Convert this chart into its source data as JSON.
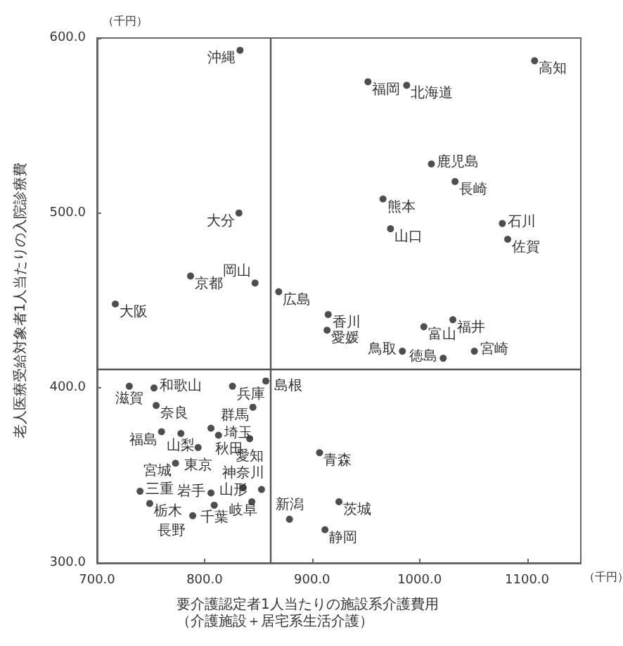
{
  "chart_data": {
    "type": "scatter",
    "xlabel": "要介護認定者1人当たりの施設系介護費用（介護施設＋居宅系生活介護）",
    "ylabel": "老人医療受給対象者1人当たりの入院診療費",
    "x": [
      833,
      952,
      988,
      1107,
      832,
      787,
      847,
      869,
      717,
      915,
      914,
      1011,
      1033,
      966,
      973,
      1077,
      1082,
      1004,
      1031,
      1051,
      984,
      1022,
      730,
      753,
      755,
      826,
      857,
      845,
      806,
      760,
      778,
      794,
      813,
      842,
      773,
      740,
      749,
      836,
      806,
      853,
      809,
      844,
      789,
      879,
      907,
      925,
      912
    ],
    "series": [
      {
        "color": "#222222",
        "values": [
          593,
          575,
          573,
          587,
          500,
          464,
          460,
          455,
          448,
          442,
          433,
          528,
          518,
          508,
          491,
          494,
          485,
          435,
          439,
          421,
          421,
          417,
          401,
          400,
          390,
          401,
          404,
          389,
          377,
          375,
          374,
          366,
          373,
          371,
          357,
          341,
          334,
          343,
          340,
          342,
          333,
          335,
          327,
          325,
          363,
          335,
          319
        ]
      }
    ],
    "marker": "circle",
    "xlim": [
      700,
      1150
    ],
    "xticks": [
      {
        "value": 700,
        "label": "700.0"
      },
      {
        "value": 800,
        "label": "800.0"
      },
      {
        "value": 900,
        "label": "900.0"
      },
      {
        "value": 1000,
        "label": "1000.0"
      },
      {
        "value": 1100,
        "label": "1100.0"
      }
    ],
    "ylim": [
      300,
      600
    ],
    "yticks": [
      {
        "value": 300,
        "label": "300.0"
      },
      {
        "value": 400,
        "label": "400.0"
      },
      {
        "value": 500,
        "label": "500.0"
      },
      {
        "value": 600,
        "label": "600.0"
      }
    ],
    "grid": false,
    "ref_lines": [
      {
        "axis": "x",
        "value": 861,
        "color": "#555555"
      },
      {
        "axis": "y",
        "value": 411,
        "color": "#555555"
      }
    ],
    "annotations": [
      "（千円）",
      "（千円）",
      {
        "text": "沖縄",
        "x": 833,
        "y": 593
      },
      {
        "text": "福岡",
        "x": 952,
        "y": 575
      },
      {
        "text": "北海道",
        "x": 988,
        "y": 573
      },
      {
        "text": "高知",
        "x": 1107,
        "y": 587
      },
      {
        "text": "大分",
        "x": 832,
        "y": 500
      },
      {
        "text": "京都",
        "x": 787,
        "y": 464
      },
      {
        "text": "岡山",
        "x": 847,
        "y": 460
      },
      {
        "text": "広島",
        "x": 869,
        "y": 455
      },
      {
        "text": "大阪",
        "x": 717,
        "y": 448
      },
      {
        "text": "香川",
        "x": 915,
        "y": 442
      },
      {
        "text": "愛媛",
        "x": 914,
        "y": 433
      },
      {
        "text": "鹿児島",
        "x": 1011,
        "y": 528
      },
      {
        "text": "長崎",
        "x": 1033,
        "y": 518
      },
      {
        "text": "熊本",
        "x": 966,
        "y": 508
      },
      {
        "text": "山口",
        "x": 973,
        "y": 491
      },
      {
        "text": "石川",
        "x": 1077,
        "y": 494
      },
      {
        "text": "佐賀",
        "x": 1082,
        "y": 485
      },
      {
        "text": "富山",
        "x": 1004,
        "y": 435
      },
      {
        "text": "福井",
        "x": 1031,
        "y": 439
      },
      {
        "text": "宮崎",
        "x": 1051,
        "y": 421
      },
      {
        "text": "鳥取",
        "x": 984,
        "y": 421
      },
      {
        "text": "徳島",
        "x": 1022,
        "y": 417
      },
      {
        "text": "滋賀",
        "x": 730,
        "y": 401
      },
      {
        "text": "和歌山",
        "x": 753,
        "y": 400
      },
      {
        "text": "奈良",
        "x": 755,
        "y": 390
      },
      {
        "text": "兵庫",
        "x": 826,
        "y": 401
      },
      {
        "text": "島根",
        "x": 857,
        "y": 404
      },
      {
        "text": "群馬",
        "x": 845,
        "y": 389
      },
      {
        "text": "秋田",
        "x": 806,
        "y": 377
      },
      {
        "text": "福島",
        "x": 760,
        "y": 375
      },
      {
        "text": "山梨",
        "x": 778,
        "y": 374
      },
      {
        "text": "東京",
        "x": 794,
        "y": 366
      },
      {
        "text": "埼玉",
        "x": 813,
        "y": 373
      },
      {
        "text": "愛知",
        "x": 842,
        "y": 371
      },
      {
        "text": "宮城",
        "x": 773,
        "y": 357
      },
      {
        "text": "三重",
        "x": 740,
        "y": 341
      },
      {
        "text": "栃木",
        "x": 749,
        "y": 334
      },
      {
        "text": "神奈川",
        "x": 836,
        "y": 343
      },
      {
        "text": "岩手",
        "x": 806,
        "y": 340
      },
      {
        "text": "岐阜",
        "x": 853,
        "y": 342
      },
      {
        "text": "千葉",
        "x": 809,
        "y": 333
      },
      {
        "text": "山形",
        "x": 844,
        "y": 335
      },
      {
        "text": "長野",
        "x": 789,
        "y": 327
      },
      {
        "text": "新潟",
        "x": 879,
        "y": 325
      },
      {
        "text": "青森",
        "x": 907,
        "y": 363
      },
      {
        "text": "茨城",
        "x": 925,
        "y": 335
      },
      {
        "text": "静岡",
        "x": 912,
        "y": 319
      }
    ]
  }
}
